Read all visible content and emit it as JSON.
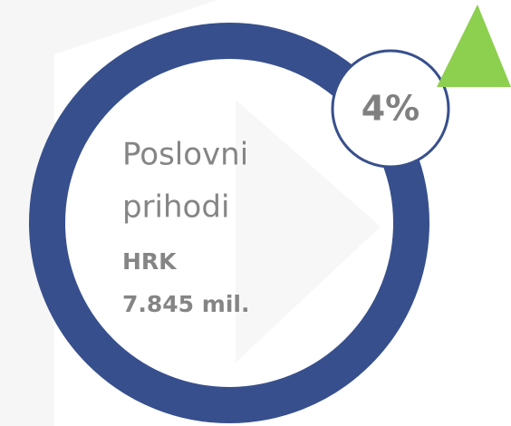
{
  "card": {
    "label_lines": [
      "Poslovni",
      "prihodi"
    ],
    "currency": "HRK",
    "amount": "7.845 mil.",
    "change": "4%"
  }
}
